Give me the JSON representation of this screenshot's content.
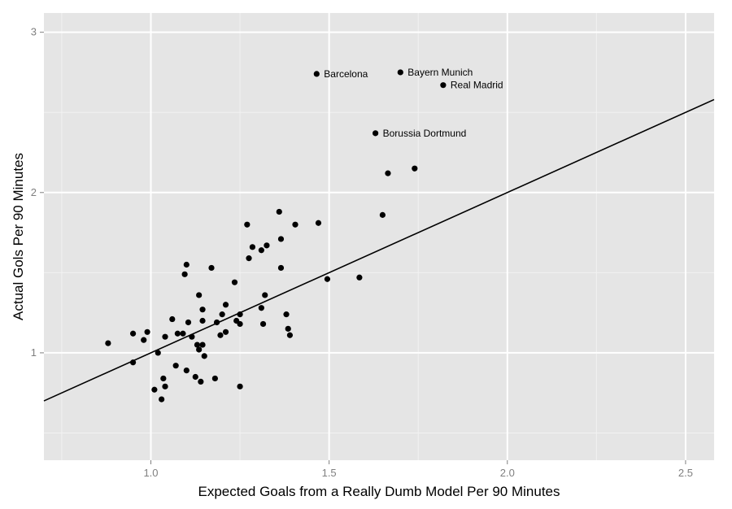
{
  "chart_data": {
    "type": "scatter",
    "title": "",
    "xlabel": "Expected Goals from a Really Dumb Model Per 90 Minutes",
    "ylabel": "Actual Gols Per 90 Minutes",
    "xlim": [
      0.7,
      2.58
    ],
    "ylim": [
      0.33,
      3.12
    ],
    "x_ticks": [
      1.0,
      1.5,
      2.0,
      2.5
    ],
    "x_tick_labels": [
      "1.0",
      "1.5",
      "2.0",
      "2.5"
    ],
    "y_ticks": [
      1,
      2,
      3
    ],
    "y_tick_labels": [
      "1",
      "2",
      "3"
    ],
    "grid": true,
    "legend": "none",
    "colors": {
      "panel_background": "#e5e5e5",
      "grid_major": "#ffffff",
      "grid_minor": "#f2f2f2",
      "point": "#000000",
      "line": "#000000",
      "tick_text": "#7f7f7f"
    },
    "reference_line": {
      "slope": 1,
      "intercept": 0
    },
    "points": [
      {
        "x": 0.88,
        "y": 1.06
      },
      {
        "x": 0.95,
        "y": 1.12
      },
      {
        "x": 0.95,
        "y": 0.94
      },
      {
        "x": 0.98,
        "y": 1.08
      },
      {
        "x": 0.99,
        "y": 1.13
      },
      {
        "x": 1.02,
        "y": 1.0
      },
      {
        "x": 1.01,
        "y": 0.77
      },
      {
        "x": 1.03,
        "y": 0.71
      },
      {
        "x": 1.035,
        "y": 0.84
      },
      {
        "x": 1.04,
        "y": 0.79
      },
      {
        "x": 1.04,
        "y": 1.1
      },
      {
        "x": 1.06,
        "y": 1.21
      },
      {
        "x": 1.07,
        "y": 0.92
      },
      {
        "x": 1.075,
        "y": 1.12
      },
      {
        "x": 1.09,
        "y": 1.12
      },
      {
        "x": 1.095,
        "y": 1.49
      },
      {
        "x": 1.1,
        "y": 1.55
      },
      {
        "x": 1.1,
        "y": 0.89
      },
      {
        "x": 1.105,
        "y": 1.19
      },
      {
        "x": 1.115,
        "y": 1.1
      },
      {
        "x": 1.125,
        "y": 0.85
      },
      {
        "x": 1.13,
        "y": 1.05
      },
      {
        "x": 1.135,
        "y": 1.36
      },
      {
        "x": 1.135,
        "y": 1.02
      },
      {
        "x": 1.14,
        "y": 0.82
      },
      {
        "x": 1.145,
        "y": 1.05
      },
      {
        "x": 1.145,
        "y": 1.2
      },
      {
        "x": 1.145,
        "y": 1.27
      },
      {
        "x": 1.15,
        "y": 0.98
      },
      {
        "x": 1.17,
        "y": 1.53
      },
      {
        "x": 1.18,
        "y": 0.84
      },
      {
        "x": 1.185,
        "y": 1.19
      },
      {
        "x": 1.195,
        "y": 1.11
      },
      {
        "x": 1.2,
        "y": 1.24
      },
      {
        "x": 1.21,
        "y": 1.13
      },
      {
        "x": 1.21,
        "y": 1.3
      },
      {
        "x": 1.235,
        "y": 1.44
      },
      {
        "x": 1.24,
        "y": 1.2
      },
      {
        "x": 1.25,
        "y": 1.18
      },
      {
        "x": 1.25,
        "y": 1.24
      },
      {
        "x": 1.25,
        "y": 0.79
      },
      {
        "x": 1.27,
        "y": 1.8
      },
      {
        "x": 1.275,
        "y": 1.59
      },
      {
        "x": 1.285,
        "y": 1.66
      },
      {
        "x": 1.31,
        "y": 1.64
      },
      {
        "x": 1.31,
        "y": 1.28
      },
      {
        "x": 1.315,
        "y": 1.18
      },
      {
        "x": 1.32,
        "y": 1.36
      },
      {
        "x": 1.325,
        "y": 1.67
      },
      {
        "x": 1.36,
        "y": 1.88
      },
      {
        "x": 1.365,
        "y": 1.53
      },
      {
        "x": 1.365,
        "y": 1.71
      },
      {
        "x": 1.38,
        "y": 1.24
      },
      {
        "x": 1.385,
        "y": 1.15
      },
      {
        "x": 1.39,
        "y": 1.11
      },
      {
        "x": 1.405,
        "y": 1.8
      },
      {
        "x": 1.47,
        "y": 1.81
      },
      {
        "x": 1.495,
        "y": 1.46
      },
      {
        "x": 1.585,
        "y": 1.47
      },
      {
        "x": 1.65,
        "y": 1.86
      },
      {
        "x": 1.665,
        "y": 2.12
      },
      {
        "x": 1.74,
        "y": 2.15
      },
      {
        "x": 1.465,
        "y": 2.74,
        "label": "Barcelona"
      },
      {
        "x": 1.7,
        "y": 2.75,
        "label": "Bayern Munich"
      },
      {
        "x": 1.82,
        "y": 2.67,
        "label": "Real Madrid"
      },
      {
        "x": 1.63,
        "y": 2.37,
        "label": "Borussia Dortmund"
      }
    ]
  }
}
